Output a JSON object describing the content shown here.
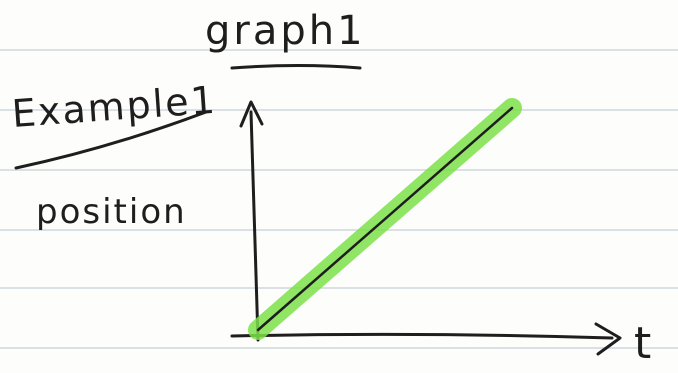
{
  "page": {
    "title": "graph1",
    "label": "Example1",
    "paper_rule_color": "#c7ced8",
    "ink_color": "#1e1e1e"
  },
  "chart_data": {
    "type": "line",
    "title": "graph1",
    "xlabel": "t",
    "ylabel": "position",
    "grid": false,
    "series": [
      {
        "x": [
          0,
          1
        ],
        "y": [
          0,
          1
        ],
        "color": "#7ee04a",
        "style": "highlighted straight line"
      }
    ]
  }
}
